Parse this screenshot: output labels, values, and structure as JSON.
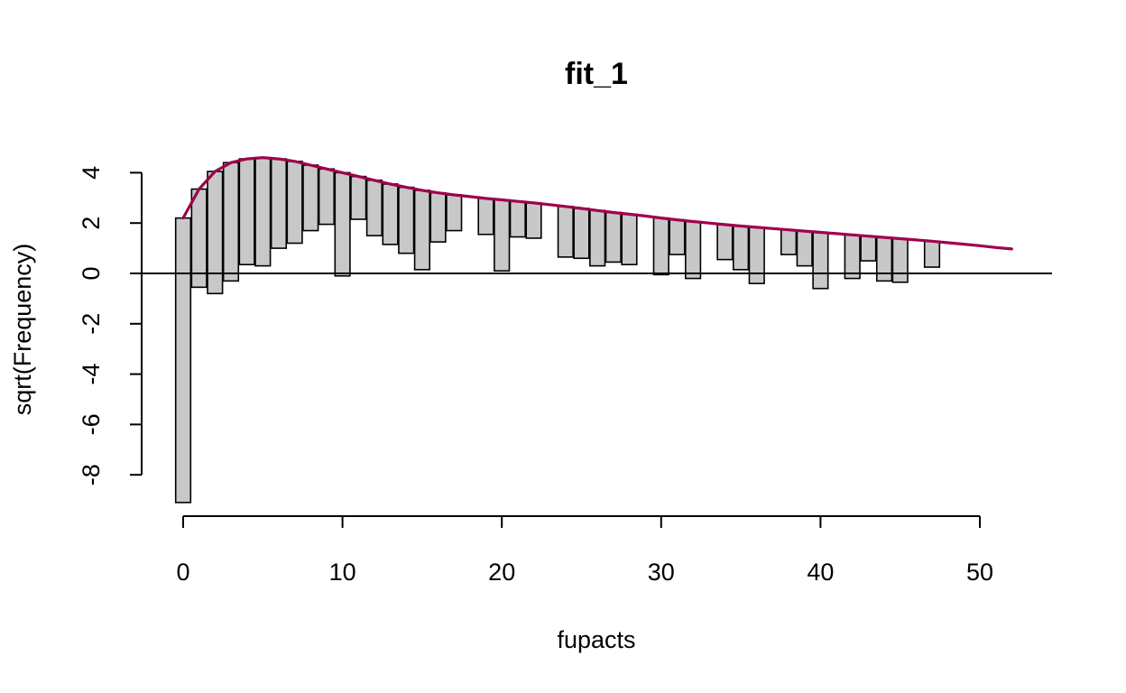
{
  "chart_data": {
    "type": "bar",
    "title": "fit_1",
    "xlabel": "fupacts",
    "ylabel": "sqrt(Frequency)",
    "xlim": [
      -1.5,
      54.5
    ],
    "ylim": [
      -9.1,
      4.6
    ],
    "x_ticks": [
      0,
      10,
      20,
      30,
      40,
      50
    ],
    "y_ticks": [
      -8,
      -6,
      -4,
      -2,
      0,
      2,
      4
    ],
    "reference_line": 0,
    "bar_color": "#c8c8c8",
    "fit_color": "#a0004b",
    "fitted_sqrt_frequency": {
      "x": [
        0,
        1,
        2,
        3,
        4,
        5,
        6,
        7,
        8,
        9,
        10,
        11,
        12,
        13,
        14,
        15,
        16,
        17,
        18,
        19,
        20,
        21,
        22,
        23,
        24,
        25,
        26,
        27,
        28,
        29,
        30,
        31,
        32,
        33,
        34,
        35,
        36,
        37,
        38,
        39,
        40,
        41,
        42,
        43,
        44,
        45,
        46,
        47,
        48,
        49,
        50,
        51,
        52
      ],
      "y": [
        2.2,
        3.35,
        4.05,
        4.4,
        4.55,
        4.6,
        4.55,
        4.45,
        4.3,
        4.15,
        4.0,
        3.85,
        3.7,
        3.55,
        3.42,
        3.3,
        3.2,
        3.12,
        3.05,
        2.98,
        2.92,
        2.86,
        2.8,
        2.73,
        2.66,
        2.58,
        2.5,
        2.42,
        2.35,
        2.28,
        2.2,
        2.13,
        2.06,
        2.0,
        1.94,
        1.88,
        1.83,
        1.78,
        1.73,
        1.68,
        1.63,
        1.58,
        1.53,
        1.48,
        1.43,
        1.38,
        1.33,
        1.28,
        1.22,
        1.16,
        1.1,
        1.03,
        0.97
      ]
    },
    "bar_bottoms": {
      "x": [
        0,
        1,
        2,
        3,
        4,
        5,
        6,
        7,
        8,
        9,
        10,
        11,
        12,
        13,
        14,
        15,
        16,
        17,
        19,
        20,
        21,
        22,
        24,
        25,
        26,
        27,
        28,
        30,
        31,
        32,
        34,
        35,
        36,
        38,
        39,
        40,
        42,
        43,
        44,
        45,
        47
      ],
      "y": [
        -9.1,
        -0.55,
        -0.8,
        -0.3,
        0.35,
        0.3,
        1.0,
        1.2,
        1.7,
        1.95,
        -0.1,
        2.15,
        1.5,
        1.15,
        0.8,
        0.15,
        1.25,
        1.7,
        1.55,
        0.1,
        1.45,
        1.4,
        0.65,
        0.6,
        0.3,
        0.45,
        0.35,
        -0.05,
        0.75,
        -0.2,
        0.55,
        0.15,
        -0.4,
        0.75,
        0.3,
        -0.6,
        -0.2,
        0.5,
        -0.3,
        -0.35,
        0.25
      ]
    }
  }
}
